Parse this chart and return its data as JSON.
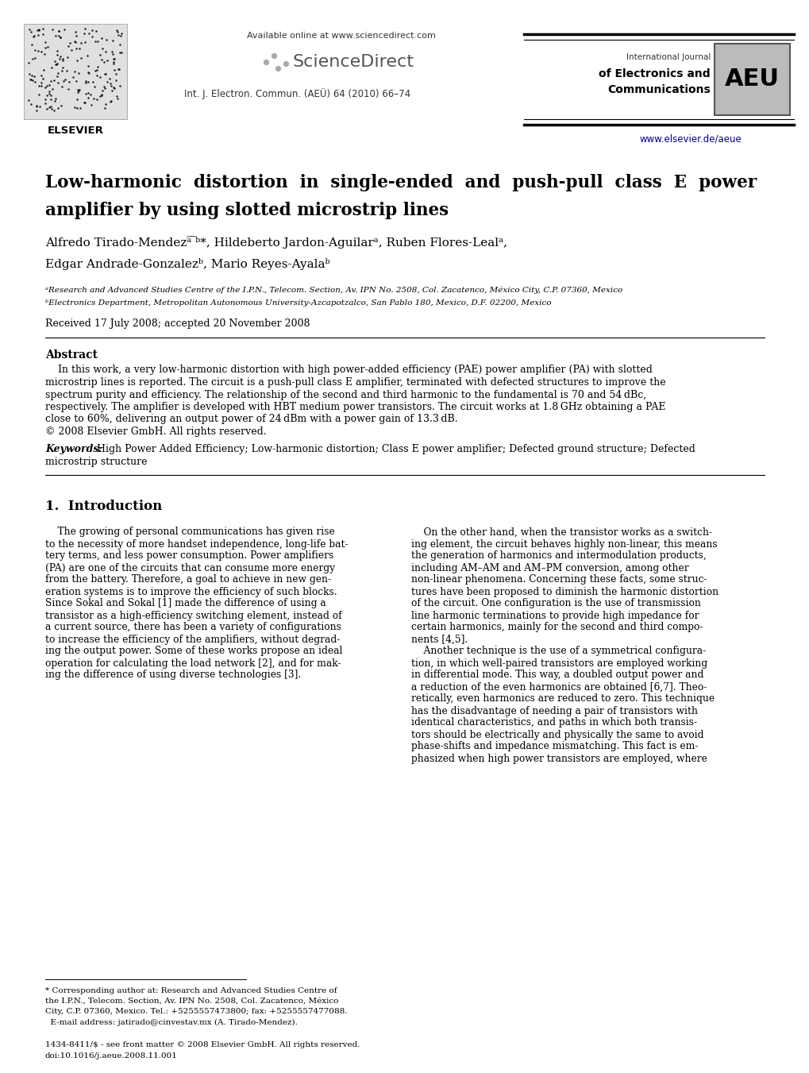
{
  "title_line1": "Low-harmonic  distortion  in  single-ended  and  push-pull  class  E  power",
  "title_line2": "amplifier by using slotted microstrip lines",
  "authors_line1": "Alfredo Tirado-Mendezᵃ͡ ᵇ*, Hildeberto Jardon-Aguilarᵃ, Ruben Flores-Lealᵃ,",
  "authors_line2": "Edgar Andrade-Gonzalezᵇ, Mario Reyes-Ayalaᵇ",
  "affil_a": "ᵃResearch and Advanced Studies Centre of the I.P.N., Telecom. Section, Av. IPN No. 2508, Col. Zacatenco, México City, C.P. 07360, Mexico",
  "affil_b": "ᵇElectronics Department, Metropolitan Autonomous University-Azcapotzalco, San Pablo 180, Mexico, D.F. 02200, Mexico",
  "received": "Received 17 July 2008; accepted 20 November 2008",
  "abstract_title": "Abstract",
  "abstract_lines": [
    "    In this work, a very low-harmonic distortion with high power-added efficiency (PAE) power amplifier (PA) with slotted",
    "microstrip lines is reported. The circuit is a push-pull class E amplifier, terminated with defected structures to improve the",
    "spectrum purity and efficiency. The relationship of the second and third harmonic to the fundamental is 70 and 54 dBc,",
    "respectively. The amplifier is developed with HBT medium power transistors. The circuit works at 1.8 GHz obtaining a PAE",
    "close to 60%, delivering an output power of 24 dBm with a power gain of 13.3 dB.",
    "© 2008 Elsevier GmbH. All rights reserved."
  ],
  "keywords_label": "Keywords:",
  "keywords_line1": " High Power Added Efficiency; Low-harmonic distortion; Class E power amplifier; Defected ground structure; Defected",
  "keywords_line2": "microstrip structure",
  "section1_title": "1.  Introduction",
  "col1_lines": [
    "    The growing of personal communications has given rise",
    "to the necessity of more handset independence, long-life bat-",
    "tery terms, and less power consumption. Power amplifiers",
    "(PA) are one of the circuits that can consume more energy",
    "from the battery. Therefore, a goal to achieve in new gen-",
    "eration systems is to improve the efficiency of such blocks.",
    "Since Sokal and Sokal [1] made the difference of using a",
    "transistor as a high-efficiency switching element, instead of",
    "a current source, there has been a variety of configurations",
    "to increase the efficiency of the amplifiers, without degrad-",
    "ing the output power. Some of these works propose an ideal",
    "operation for calculating the load network [2], and for mak-",
    "ing the difference of using diverse technologies [3]."
  ],
  "col2_lines": [
    "    On the other hand, when the transistor works as a switch-",
    "ing element, the circuit behaves highly non-linear, this means",
    "the generation of harmonics and intermodulation products,",
    "including AM–AM and AM–PM conversion, among other",
    "non-linear phenomena. Concerning these facts, some struc-",
    "tures have been proposed to diminish the harmonic distortion",
    "of the circuit. One configuration is the use of transmission",
    "line harmonic terminations to provide high impedance for",
    "certain harmonics, mainly for the second and third compo-",
    "nents [4,5].",
    "    Another technique is the use of a symmetrical configura-",
    "tion, in which well-paired transistors are employed working",
    "in differential mode. This way, a doubled output power and",
    "a reduction of the even harmonics are obtained [6,7]. Theo-",
    "retically, even harmonics are reduced to zero. This technique",
    "has the disadvantage of needing a pair of transistors with",
    "identical characteristics, and paths in which both transis-",
    "tors should be electrically and physically the same to avoid",
    "phase-shifts and impedance mismatching. This fact is em-",
    "phasized when high power transistors are employed, where"
  ],
  "footnote_lines": [
    "* Corresponding author at: Research and Advanced Studies Centre of",
    "the I.P.N., Telecom. Section, Av. IPN No. 2508, Col. Zacatenco, México",
    "City, C.P. 07360, Mexico. Tel.: +5255557473800; fax: +5255557477088.",
    "  E-mail address: jatirado@cinvestav.mx (A. Tirado-Mendez)."
  ],
  "footer_left": "1434-8411/$ - see front matter © 2008 Elsevier GmbH. All rights reserved.",
  "footer_doi": "doi:10.1016/j.aeue.2008.11.001",
  "available_online": "Available online at www.sciencedirect.com",
  "journal_info": "Int. J. Electron. Commun. (AEÜ) 64 (2010) 66–74",
  "aeu_line1": "International Journal",
  "aeu_line2": "of Electronics and",
  "aeu_line3": "Communications",
  "website": "www.elsevier.de/aeue",
  "elsevier": "ELSEVIER",
  "bg_color": "#ffffff",
  "link_color": "#00008B"
}
